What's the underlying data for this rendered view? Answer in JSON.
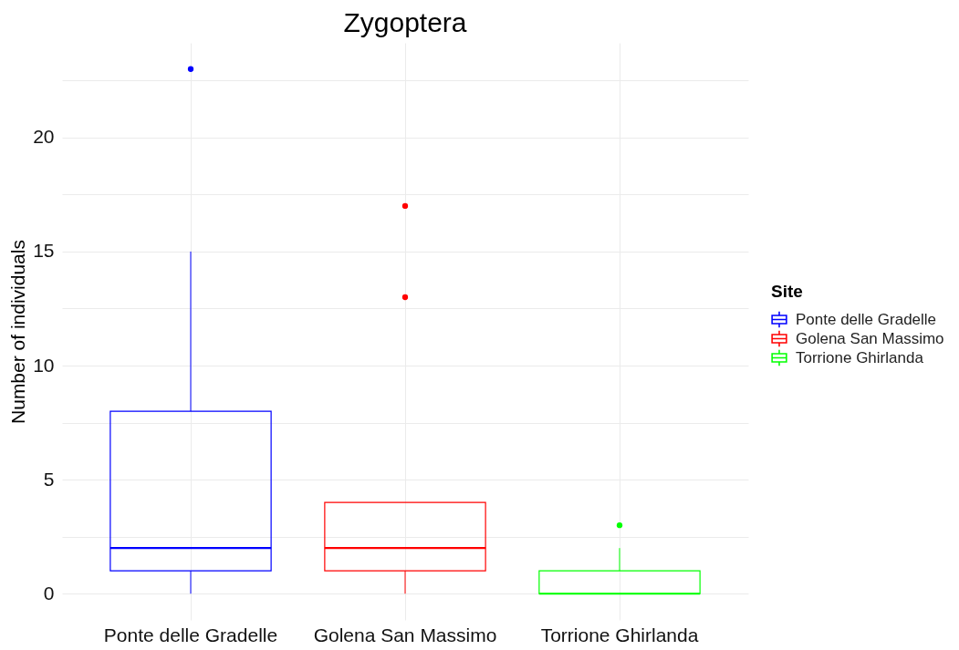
{
  "chart_data": {
    "type": "box",
    "title": "Zygoptera",
    "ylabel": "Number of individuals",
    "legend_title": "Site",
    "categories": [
      "Ponte delle Gradelle",
      "Golena San Massimo",
      "Torrione Ghirlanda"
    ],
    "series": [
      {
        "name": "Ponte delle Gradelle",
        "color": "#0000ff",
        "boxes": [
          {
            "low": 0,
            "q1": 1,
            "median": 2,
            "q3": 8,
            "high": 15,
            "outliers": [
              23
            ]
          },
          null,
          null
        ]
      },
      {
        "name": "Golena San Massimo",
        "color": "#ff0000",
        "boxes": [
          null,
          {
            "low": 0,
            "q1": 1,
            "median": 2,
            "q3": 4,
            "high": 4,
            "outliers": [
              13,
              17
            ]
          },
          null
        ]
      },
      {
        "name": "Torrione Ghirlanda",
        "color": "#00ff00",
        "boxes": [
          null,
          null,
          {
            "low": 0,
            "q1": 0,
            "median": 0,
            "q3": 1,
            "high": 2,
            "outliers": [
              3
            ]
          }
        ]
      }
    ],
    "ylim": [
      -1.15,
      24.15
    ],
    "yticks": [
      0,
      {
        "value": 2.5,
        "label": null
      },
      5,
      {
        "value": 7.5,
        "label": null
      },
      10,
      {
        "value": 12.5,
        "label": null
      },
      15,
      {
        "value": 17.5,
        "label": null
      },
      20,
      {
        "value": 22.5,
        "label": null
      }
    ],
    "grid": true,
    "legend": "right"
  }
}
